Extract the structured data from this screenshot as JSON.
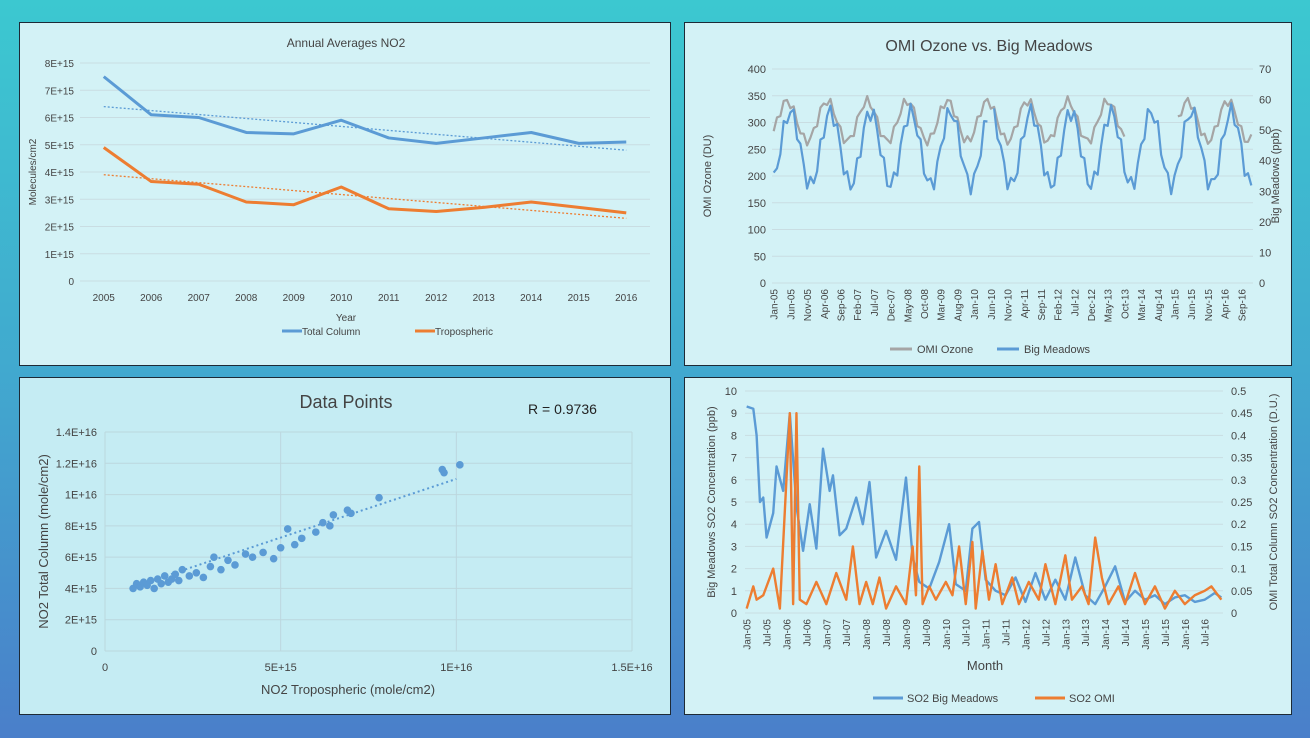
{
  "chart_data": [
    {
      "type": "line",
      "title": "Annual Averages NO2",
      "xlabel": "Year",
      "ylabel": "Molecules/cm2",
      "ylim": [
        0,
        8000000000000000.0
      ],
      "yticks": [
        "0",
        "1E+15",
        "2E+15",
        "3E+15",
        "4E+15",
        "5E+15",
        "6E+15",
        "7E+15",
        "8E+15"
      ],
      "categories": [
        "2005",
        "2006",
        "2007",
        "2008",
        "2009",
        "2010",
        "2011",
        "2012",
        "2013",
        "2014",
        "2015",
        "2016"
      ],
      "series": [
        {
          "name": "Total Column",
          "color": "#5b9bd5",
          "values": [
            7500000000000000.0,
            6100000000000000.0,
            6000000000000000.0,
            5450000000000000.0,
            5400000000000000.0,
            5900000000000000.0,
            5250000000000000.0,
            5050000000000000.0,
            5250000000000000.0,
            5450000000000000.0,
            5050000000000000.0,
            5100000000000000.0
          ]
        },
        {
          "name": "Tropospheric",
          "color": "#ed7d31",
          "values": [
            4900000000000000.0,
            3650000000000000.0,
            3550000000000000.0,
            2900000000000000.0,
            2800000000000000.0,
            3450000000000000.0,
            2650000000000000.0,
            2550000000000000.0,
            2700000000000000.0,
            2900000000000000.0,
            2700000000000000.0,
            2500000000000000.0
          ]
        }
      ],
      "trendlines": [
        {
          "series": "Total Column",
          "start": 6400000000000000.0,
          "end": 4800000000000000.0
        },
        {
          "series": "Tropospheric",
          "start": 3900000000000000.0,
          "end": 2300000000000000.0
        }
      ],
      "legend": "bottom"
    },
    {
      "type": "line",
      "title": "OMI Ozone vs. Big Meadows",
      "ylabel": "OMI Ozone (DU)",
      "y2label": "Big Meadows (ppb)",
      "ylim": [
        0,
        400
      ],
      "y2lim": [
        0,
        70
      ],
      "yticks": [
        "0",
        "50",
        "100",
        "150",
        "200",
        "250",
        "300",
        "350",
        "400"
      ],
      "y2ticks": [
        "0",
        "10",
        "20",
        "30",
        "40",
        "50",
        "60",
        "70"
      ],
      "xticks": [
        "Jan-05",
        "Jun-05",
        "Nov-05",
        "Apr-06",
        "Sep-06",
        "Feb-07",
        "Jul-07",
        "Dec-07",
        "May-08",
        "Oct-08",
        "Mar-09",
        "Aug-09",
        "Jan-10",
        "Jun-10",
        "Nov-10",
        "Apr-11",
        "Sep-11",
        "Feb-12",
        "Jul-12",
        "Dec-12",
        "May-13",
        "Oct-13",
        "Mar-14",
        "Aug-14",
        "Jan-15",
        "Jun-15",
        "Nov-15",
        "Apr-16",
        "Sep-16"
      ],
      "months": 144,
      "series": [
        {
          "name": "OMI Ozone",
          "color": "#a5a5a5",
          "axis": "left",
          "segments": [
            [
              0,
              105
            ],
            [
              121,
              143
            ]
          ],
          "min": 265,
          "max": 340,
          "peak_month": 4
        },
        {
          "name": "Big Meadows",
          "color": "#5b9bd5",
          "axis": "right",
          "segments": [
            [
              0,
              64
            ],
            [
              66,
              143
            ]
          ],
          "min": 32,
          "max": 56,
          "peak_month": 5
        }
      ],
      "legend": "bottom"
    },
    {
      "type": "scatter",
      "title": "Data Points",
      "annotation": "R = 0.9736",
      "xlabel": "NO2 Tropospheric (mole/cm2)",
      "ylabel": "NO2 Total Column (mole/cm2)",
      "xlim": [
        0,
        1.5e+16
      ],
      "ylim": [
        0,
        1.4e+16
      ],
      "xticks": [
        "0",
        "5E+15",
        "1E+16",
        "1.5E+16"
      ],
      "yticks": [
        "0",
        "2E+15",
        "4E+15",
        "6E+15",
        "8E+15",
        "1E+16",
        "1.2E+16",
        "1.4E+16"
      ],
      "color": "#5b9bd5",
      "trendline": {
        "x0": 800000000000000.0,
        "y0": 4100000000000000.0,
        "x1": 1e+16,
        "y1": 1.1e+16
      },
      "points": [
        [
          800000000000000.0,
          4000000000000000.0
        ],
        [
          900000000000000.0,
          4300000000000000.0
        ],
        [
          1000000000000000.0,
          4100000000000000.0
        ],
        [
          1100000000000000.0,
          4400000000000000.0
        ],
        [
          1200000000000000.0,
          4200000000000000.0
        ],
        [
          1300000000000000.0,
          4500000000000000.0
        ],
        [
          1400000000000000.0,
          4000000000000000.0
        ],
        [
          1500000000000000.0,
          4600000000000000.0
        ],
        [
          1600000000000000.0,
          4300000000000000.0
        ],
        [
          1700000000000000.0,
          4800000000000000.0
        ],
        [
          1800000000000000.0,
          4400000000000000.0
        ],
        [
          1900000000000000.0,
          4600000000000000.0
        ],
        [
          2000000000000000.0,
          4900000000000000.0
        ],
        [
          2100000000000000.0,
          4500000000000000.0
        ],
        [
          2200000000000000.0,
          5200000000000000.0
        ],
        [
          2400000000000000.0,
          4800000000000000.0
        ],
        [
          2600000000000000.0,
          5000000000000000.0
        ],
        [
          2800000000000000.0,
          4700000000000000.0
        ],
        [
          3000000000000000.0,
          5400000000000000.0
        ],
        [
          3100000000000000.0,
          6000000000000000.0
        ],
        [
          3300000000000000.0,
          5200000000000000.0
        ],
        [
          3500000000000000.0,
          5800000000000000.0
        ],
        [
          3700000000000000.0,
          5500000000000000.0
        ],
        [
          4000000000000000.0,
          6200000000000000.0
        ],
        [
          4200000000000000.0,
          6000000000000000.0
        ],
        [
          4500000000000000.0,
          6300000000000000.0
        ],
        [
          4800000000000000.0,
          5900000000000000.0
        ],
        [
          5000000000000000.0,
          6600000000000000.0
        ],
        [
          5200000000000000.0,
          7800000000000000.0
        ],
        [
          5400000000000000.0,
          6800000000000000.0
        ],
        [
          5600000000000000.0,
          7200000000000000.0
        ],
        [
          6000000000000000.0,
          7600000000000000.0
        ],
        [
          6200000000000000.0,
          8200000000000000.0
        ],
        [
          6400000000000000.0,
          8000000000000000.0
        ],
        [
          6500000000000000.0,
          8700000000000000.0
        ],
        [
          6900000000000000.0,
          9000000000000000.0
        ],
        [
          7000000000000000.0,
          8800000000000000.0
        ],
        [
          7800000000000000.0,
          9800000000000000.0
        ],
        [
          9600000000000000.0,
          1.16e+16
        ],
        [
          9650000000000000.0,
          1.14e+16
        ],
        [
          1.01e+16,
          1.19e+16
        ]
      ],
      "legend": "none"
    },
    {
      "type": "line",
      "xlabel": "Month",
      "ylabel": "Big Meadows SO2 Concentration (ppb)",
      "y2label": "OMI Total Column SO2 Concentration (D.U.)",
      "ylim": [
        0,
        10
      ],
      "y2lim": [
        0,
        0.5
      ],
      "yticks": [
        "0",
        "1",
        "2",
        "3",
        "4",
        "5",
        "6",
        "7",
        "8",
        "9",
        "10"
      ],
      "y2ticks": [
        "0",
        "0.05",
        "0.1",
        "0.15",
        "0.2",
        "0.25",
        "0.3",
        "0.35",
        "0.4",
        "0.45",
        "0.5"
      ],
      "xticks": [
        "Jan-05",
        "Jul-05",
        "Jan-06",
        "Jul-06",
        "Jan-07",
        "Jul-07",
        "Jan-08",
        "Jul-08",
        "Jan-09",
        "Jul-09",
        "Jan-10",
        "Jul-10",
        "Jan-11",
        "Jul-11",
        "Jan-12",
        "Jul-12",
        "Jan-13",
        "Jul-13",
        "Jan-14",
        "Jul-14",
        "Jan-15",
        "Jul-15",
        "Jan-16",
        "Jul-16"
      ],
      "months": 144,
      "series": [
        {
          "name": "SO2 Big Meadows",
          "color": "#5b9bd5",
          "axis": "left",
          "keypoints": [
            [
              0,
              9.3
            ],
            [
              2,
              9.2
            ],
            [
              3,
              8.0
            ],
            [
              4,
              5.0
            ],
            [
              5,
              5.2
            ],
            [
              6,
              3.4
            ],
            [
              8,
              4.5
            ],
            [
              9,
              6.6
            ],
            [
              11,
              5.5
            ],
            [
              13,
              9.0
            ],
            [
              15,
              4.8
            ],
            [
              17,
              2.8
            ],
            [
              19,
              4.9
            ],
            [
              21,
              2.9
            ],
            [
              23,
              7.4
            ],
            [
              25,
              5.5
            ],
            [
              26,
              6.2
            ],
            [
              28,
              3.5
            ],
            [
              30,
              3.8
            ],
            [
              33,
              5.2
            ],
            [
              35,
              4.0
            ],
            [
              37,
              5.9
            ],
            [
              39,
              2.5
            ],
            [
              42,
              3.7
            ],
            [
              45,
              2.4
            ],
            [
              48,
              6.1
            ],
            [
              50,
              2.5
            ],
            [
              52,
              1.4
            ],
            [
              55,
              1.1
            ],
            [
              58,
              2.3
            ],
            [
              61,
              4.0
            ],
            [
              63,
              1.3
            ],
            [
              66,
              1.0
            ],
            [
              68,
              3.8
            ],
            [
              70,
              4.1
            ],
            [
              72,
              1.5
            ],
            [
              75,
              1.0
            ],
            [
              78,
              0.8
            ],
            [
              81,
              1.6
            ],
            [
              84,
              0.5
            ],
            [
              87,
              1.8
            ],
            [
              90,
              0.6
            ],
            [
              93,
              1.5
            ],
            [
              96,
              0.6
            ],
            [
              99,
              2.5
            ],
            [
              102,
              0.8
            ],
            [
              105,
              0.4
            ],
            [
              108,
              1.2
            ],
            [
              111,
              2.1
            ],
            [
              114,
              0.5
            ],
            [
              117,
              1.0
            ],
            [
              120,
              0.6
            ],
            [
              123,
              0.8
            ],
            [
              126,
              0.4
            ],
            [
              129,
              0.7
            ],
            [
              132,
              0.8
            ],
            [
              135,
              0.5
            ],
            [
              138,
              0.6
            ],
            [
              141,
              0.9
            ],
            [
              143,
              0.7
            ]
          ]
        },
        {
          "name": "SO2 OMI",
          "color": "#ed7d31",
          "axis": "right",
          "keypoints": [
            [
              0,
              0.01
            ],
            [
              2,
              0.06
            ],
            [
              3,
              0.03
            ],
            [
              5,
              0.04
            ],
            [
              8,
              0.1
            ],
            [
              10,
              0.01
            ],
            [
              13,
              0.45
            ],
            [
              14,
              0.02
            ],
            [
              15,
              0.45
            ],
            [
              16,
              0.03
            ],
            [
              18,
              0.02
            ],
            [
              21,
              0.07
            ],
            [
              24,
              0.02
            ],
            [
              27,
              0.09
            ],
            [
              30,
              0.03
            ],
            [
              32,
              0.15
            ],
            [
              34,
              0.02
            ],
            [
              36,
              0.07
            ],
            [
              38,
              0.02
            ],
            [
              40,
              0.08
            ],
            [
              42,
              0.01
            ],
            [
              45,
              0.06
            ],
            [
              48,
              0.02
            ],
            [
              50,
              0.15
            ],
            [
              51,
              0.04
            ],
            [
              52,
              0.33
            ],
            [
              53,
              0.02
            ],
            [
              55,
              0.06
            ],
            [
              57,
              0.03
            ],
            [
              60,
              0.07
            ],
            [
              62,
              0.04
            ],
            [
              64,
              0.15
            ],
            [
              66,
              0.02
            ],
            [
              68,
              0.16
            ],
            [
              69,
              0.01
            ],
            [
              71,
              0.14
            ],
            [
              73,
              0.03
            ],
            [
              75,
              0.11
            ],
            [
              77,
              0.02
            ],
            [
              80,
              0.08
            ],
            [
              82,
              0.02
            ],
            [
              85,
              0.07
            ],
            [
              88,
              0.03
            ],
            [
              90,
              0.11
            ],
            [
              93,
              0.02
            ],
            [
              96,
              0.13
            ],
            [
              98,
              0.03
            ],
            [
              101,
              0.06
            ],
            [
              103,
              0.02
            ],
            [
              105,
              0.17
            ],
            [
              107,
              0.08
            ],
            [
              109,
              0.02
            ],
            [
              112,
              0.06
            ],
            [
              114,
              0.02
            ],
            [
              117,
              0.09
            ],
            [
              120,
              0.02
            ],
            [
              123,
              0.06
            ],
            [
              126,
              0.01
            ],
            [
              129,
              0.05
            ],
            [
              132,
              0.02
            ],
            [
              135,
              0.04
            ],
            [
              138,
              0.05
            ],
            [
              140,
              0.06
            ],
            [
              143,
              0.03
            ]
          ]
        }
      ],
      "legend": "bottom"
    }
  ]
}
